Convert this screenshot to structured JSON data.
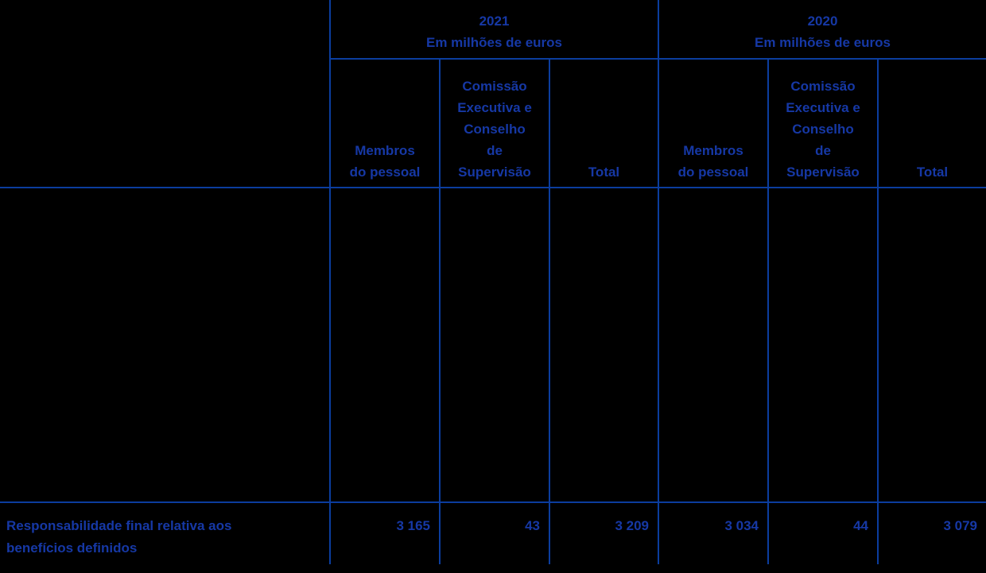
{
  "colors": {
    "background": "#000000",
    "grid_line": "#0B3D9E",
    "text": "#1638A5"
  },
  "table": {
    "year_groups": [
      {
        "year": "2021",
        "unit": "Em milhões de euros"
      },
      {
        "year": "2020",
        "unit": "Em milhões de euros"
      }
    ],
    "column_headers": {
      "membros": "Membros\ndo pessoal",
      "comissao": "Comissão\nExecutiva e\nConselho\nde\nSupervisão",
      "total": "Total"
    },
    "rows": [
      {
        "label": "Responsabilidade final relativa aos benefícios definidos",
        "values": {
          "y2021": {
            "membros": "3 165",
            "comissao": "43",
            "total": "3 209"
          },
          "y2020": {
            "membros": "3 034",
            "comissao": "44",
            "total": "3 079"
          }
        }
      }
    ]
  }
}
